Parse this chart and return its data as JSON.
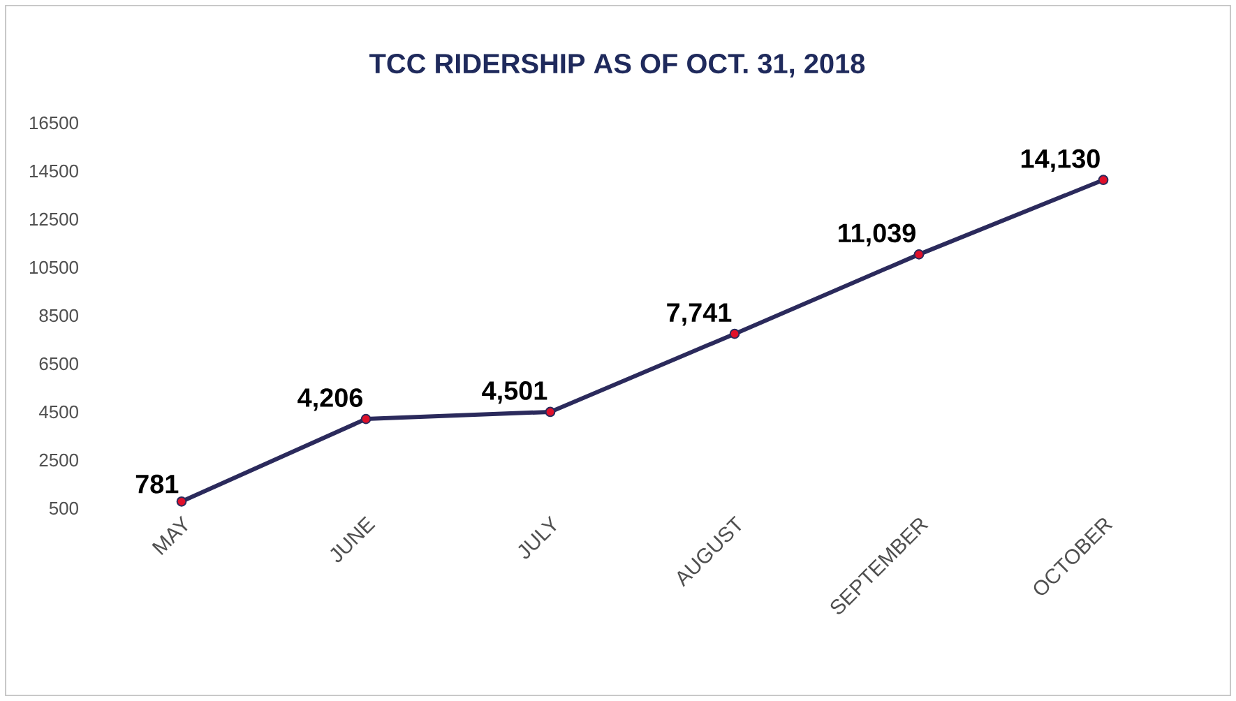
{
  "chart_data": {
    "type": "line",
    "title": "TCC RIDERSHIP AS OF OCT. 31, 2018",
    "categories": [
      "MAY",
      "JUNE",
      "JULY",
      "AUGUST",
      "SEPTEMBER",
      "OCTOBER"
    ],
    "series": [
      {
        "color": "#2b2a5c",
        "values": [
          781,
          4206,
          4501,
          7741,
          11039,
          14130
        ],
        "value_labels": [
          "781",
          "4,206",
          "4,501",
          "7,741",
          "11,039",
          "14,130"
        ]
      }
    ],
    "marker": "circle",
    "ylim": [
      500,
      16500
    ],
    "yticks": [
      500,
      2500,
      4500,
      6500,
      8500,
      10500,
      12500,
      14500,
      16500
    ]
  }
}
